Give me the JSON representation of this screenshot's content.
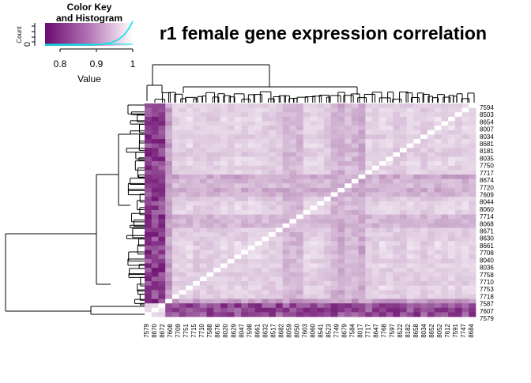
{
  "chart_data": {
    "type": "heatmap",
    "title": "r1 female gene expression correlation",
    "color_key": {
      "title_line1": "Color Key",
      "title_line2": "and Histogram",
      "xlabel": "Value",
      "ylabel": "Count",
      "x_ticks": [
        "0.8",
        "0.9",
        "1"
      ],
      "y_ticks": [
        "0"
      ],
      "range": [
        0.74,
        1.0
      ],
      "low_color": "#6b0a6e",
      "high_color": "#ffffff",
      "histogram_color": "#00e5e5"
    },
    "row_labels": [
      "7594",
      "8503",
      "8654",
      "8007",
      "8034",
      "8681",
      "8181",
      "8035",
      "7750",
      "7717",
      "8674",
      "7720",
      "7609",
      "8044",
      "8060",
      "7714",
      "8068",
      "8671",
      "8630",
      "8661",
      "7708",
      "8040",
      "8036",
      "7758",
      "7710",
      "7753",
      "7718",
      "7587",
      "7607",
      "7579"
    ],
    "col_labels": [
      "7579",
      "8670",
      "8672",
      "7608",
      "7709",
      "7751",
      "7715",
      "7710",
      "7588",
      "8676",
      "8020",
      "8629",
      "8047",
      "7598",
      "8661",
      "8632",
      "8517",
      "8682",
      "8059",
      "8050",
      "7603",
      "8060",
      "8541",
      "8523",
      "7749",
      "8679",
      "7584",
      "8017",
      "7717",
      "8647",
      "7768",
      "7597",
      "8522",
      "8182",
      "8658",
      "8034",
      "8652",
      "8052",
      "7612",
      "7591",
      "7747",
      "8684"
    ],
    "value_notes": "symmetric correlation matrix; values range roughly 0.75 to 1.0; outlier samples (bottom rows / left columns) show lowest correlation"
  }
}
